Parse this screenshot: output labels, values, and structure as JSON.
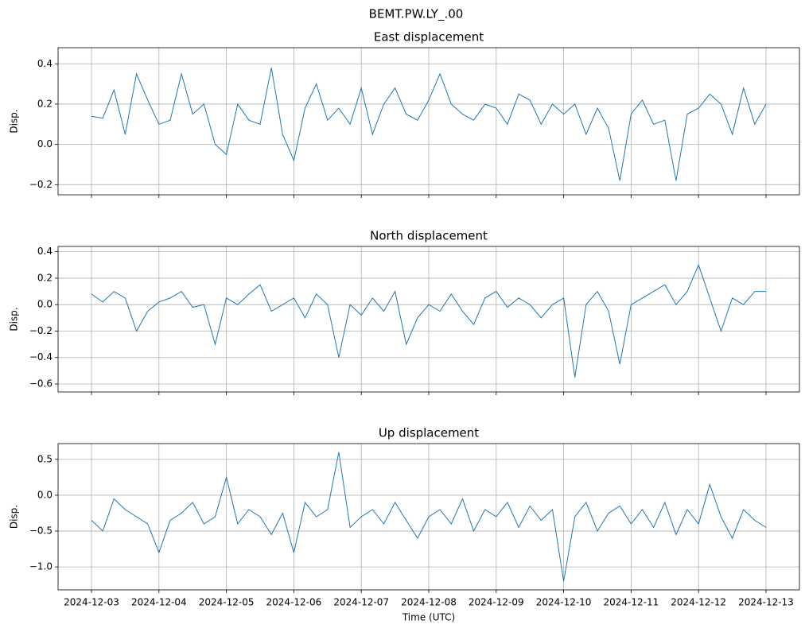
{
  "title": "BEMT.PW.LY_.00",
  "chart_data": [
    {
      "type": "line",
      "title": "East displacement",
      "ylabel": "Disp.",
      "x": [
        "2024-12-03T00:00",
        "2024-12-03T04:00",
        "2024-12-03T08:00",
        "2024-12-03T12:00",
        "2024-12-03T16:00",
        "2024-12-03T20:00",
        "2024-12-04T00:00",
        "2024-12-04T04:00",
        "2024-12-04T08:00",
        "2024-12-04T12:00",
        "2024-12-04T16:00",
        "2024-12-04T20:00",
        "2024-12-05T00:00",
        "2024-12-05T04:00",
        "2024-12-05T08:00",
        "2024-12-05T12:00",
        "2024-12-05T16:00",
        "2024-12-05T20:00",
        "2024-12-06T00:00",
        "2024-12-06T04:00",
        "2024-12-06T08:00",
        "2024-12-06T12:00",
        "2024-12-06T16:00",
        "2024-12-06T20:00",
        "2024-12-07T00:00",
        "2024-12-07T04:00",
        "2024-12-07T08:00",
        "2024-12-07T12:00",
        "2024-12-07T16:00",
        "2024-12-07T20:00",
        "2024-12-08T00:00",
        "2024-12-08T04:00",
        "2024-12-08T08:00",
        "2024-12-08T12:00",
        "2024-12-08T16:00",
        "2024-12-08T20:00",
        "2024-12-09T00:00",
        "2024-12-09T04:00",
        "2024-12-09T08:00",
        "2024-12-09T12:00",
        "2024-12-09T16:00",
        "2024-12-09T20:00",
        "2024-12-10T00:00",
        "2024-12-10T04:00",
        "2024-12-10T08:00",
        "2024-12-10T12:00",
        "2024-12-10T16:00",
        "2024-12-10T20:00",
        "2024-12-11T00:00",
        "2024-12-11T04:00",
        "2024-12-11T08:00",
        "2024-12-11T12:00",
        "2024-12-11T16:00",
        "2024-12-11T20:00",
        "2024-12-12T00:00",
        "2024-12-12T04:00",
        "2024-12-12T08:00",
        "2024-12-12T12:00",
        "2024-12-12T16:00",
        "2024-12-12T20:00",
        "2024-12-13T00:00"
      ],
      "values": [
        0.14,
        0.13,
        0.27,
        0.05,
        0.35,
        0.22,
        0.1,
        0.12,
        0.35,
        0.15,
        0.2,
        0.0,
        -0.05,
        0.2,
        0.12,
        0.1,
        0.38,
        0.05,
        -0.08,
        0.18,
        0.3,
        0.12,
        0.18,
        0.1,
        0.28,
        0.05,
        0.2,
        0.28,
        0.15,
        0.12,
        0.22,
        0.35,
        0.2,
        0.15,
        0.12,
        0.2,
        0.18,
        0.1,
        0.25,
        0.22,
        0.1,
        0.2,
        0.15,
        0.2,
        0.05,
        0.18,
        0.08,
        -0.18,
        0.15,
        0.22,
        0.1,
        0.12,
        -0.18,
        0.15,
        0.18,
        0.25,
        0.2,
        0.05,
        0.28,
        0.1,
        0.2
      ],
      "color": "#1f77b4",
      "grid": true,
      "xlim": [
        "2024-12-02T12:06",
        "2024-12-13T11:54"
      ],
      "xticks": [
        "2024-12-03",
        "2024-12-04",
        "2024-12-05",
        "2024-12-06",
        "2024-12-07",
        "2024-12-08",
        "2024-12-09",
        "2024-12-10",
        "2024-12-11",
        "2024-12-12",
        "2024-12-13"
      ],
      "ylim": [
        -0.25,
        0.48
      ],
      "yticks": [
        {
          "value": -0.2,
          "label": "−0.2"
        },
        {
          "value": 0,
          "label": "0.0"
        },
        {
          "value": 0.2,
          "label": "0.2"
        },
        {
          "value": 0.4,
          "label": "0.4"
        }
      ]
    },
    {
      "type": "line",
      "title": "North displacement",
      "ylabel": "Disp.",
      "x": [
        "2024-12-03T00:00",
        "2024-12-03T04:00",
        "2024-12-03T08:00",
        "2024-12-03T12:00",
        "2024-12-03T16:00",
        "2024-12-03T20:00",
        "2024-12-04T00:00",
        "2024-12-04T04:00",
        "2024-12-04T08:00",
        "2024-12-04T12:00",
        "2024-12-04T16:00",
        "2024-12-04T20:00",
        "2024-12-05T00:00",
        "2024-12-05T04:00",
        "2024-12-05T08:00",
        "2024-12-05T12:00",
        "2024-12-05T16:00",
        "2024-12-05T20:00",
        "2024-12-06T00:00",
        "2024-12-06T04:00",
        "2024-12-06T08:00",
        "2024-12-06T12:00",
        "2024-12-06T16:00",
        "2024-12-06T20:00",
        "2024-12-07T00:00",
        "2024-12-07T04:00",
        "2024-12-07T08:00",
        "2024-12-07T12:00",
        "2024-12-07T16:00",
        "2024-12-07T20:00",
        "2024-12-08T00:00",
        "2024-12-08T04:00",
        "2024-12-08T08:00",
        "2024-12-08T12:00",
        "2024-12-08T16:00",
        "2024-12-08T20:00",
        "2024-12-09T00:00",
        "2024-12-09T04:00",
        "2024-12-09T08:00",
        "2024-12-09T12:00",
        "2024-12-09T16:00",
        "2024-12-09T20:00",
        "2024-12-10T00:00",
        "2024-12-10T04:00",
        "2024-12-10T08:00",
        "2024-12-10T12:00",
        "2024-12-10T16:00",
        "2024-12-10T20:00",
        "2024-12-11T00:00",
        "2024-12-11T04:00",
        "2024-12-11T08:00",
        "2024-12-11T12:00",
        "2024-12-11T16:00",
        "2024-12-11T20:00",
        "2024-12-12T00:00",
        "2024-12-12T04:00",
        "2024-12-12T08:00",
        "2024-12-12T12:00",
        "2024-12-12T16:00",
        "2024-12-12T20:00",
        "2024-12-13T00:00"
      ],
      "values": [
        0.08,
        0.02,
        0.1,
        0.05,
        -0.2,
        -0.05,
        0.02,
        0.05,
        0.1,
        -0.02,
        0.0,
        -0.3,
        0.05,
        0.0,
        0.08,
        0.15,
        -0.05,
        0.0,
        0.05,
        -0.1,
        0.08,
        0.0,
        -0.4,
        0.0,
        -0.08,
        0.05,
        -0.05,
        0.1,
        -0.3,
        -0.1,
        0.0,
        -0.05,
        0.08,
        -0.05,
        -0.15,
        0.05,
        0.1,
        -0.02,
        0.05,
        0.0,
        -0.1,
        0.0,
        0.05,
        -0.55,
        0.0,
        0.1,
        -0.05,
        -0.45,
        0.0,
        0.05,
        0.1,
        0.15,
        0.0,
        0.1,
        0.3,
        0.05,
        -0.2,
        0.05,
        0.0,
        0.1,
        0.1
      ],
      "color": "#1f77b4",
      "grid": true,
      "xlim": [
        "2024-12-02T12:06",
        "2024-12-13T11:54"
      ],
      "xticks": [
        "2024-12-03",
        "2024-12-04",
        "2024-12-05",
        "2024-12-06",
        "2024-12-07",
        "2024-12-08",
        "2024-12-09",
        "2024-12-10",
        "2024-12-11",
        "2024-12-12",
        "2024-12-13"
      ],
      "ylim": [
        -0.66,
        0.44
      ],
      "yticks": [
        {
          "value": -0.6,
          "label": "−0.6"
        },
        {
          "value": -0.4,
          "label": "−0.4"
        },
        {
          "value": -0.2,
          "label": "−0.2"
        },
        {
          "value": 0,
          "label": "0.0"
        },
        {
          "value": 0.2,
          "label": "0.2"
        },
        {
          "value": 0.4,
          "label": "0.4"
        }
      ]
    },
    {
      "type": "line",
      "title": "Up displacement",
      "ylabel": "Disp.",
      "xlabel": "Time (UTC)",
      "x": [
        "2024-12-03T00:00",
        "2024-12-03T04:00",
        "2024-12-03T08:00",
        "2024-12-03T12:00",
        "2024-12-03T16:00",
        "2024-12-03T20:00",
        "2024-12-04T00:00",
        "2024-12-04T04:00",
        "2024-12-04T08:00",
        "2024-12-04T12:00",
        "2024-12-04T16:00",
        "2024-12-04T20:00",
        "2024-12-05T00:00",
        "2024-12-05T04:00",
        "2024-12-05T08:00",
        "2024-12-05T12:00",
        "2024-12-05T16:00",
        "2024-12-05T20:00",
        "2024-12-06T00:00",
        "2024-12-06T04:00",
        "2024-12-06T08:00",
        "2024-12-06T12:00",
        "2024-12-06T16:00",
        "2024-12-06T20:00",
        "2024-12-07T00:00",
        "2024-12-07T04:00",
        "2024-12-07T08:00",
        "2024-12-07T12:00",
        "2024-12-07T16:00",
        "2024-12-07T20:00",
        "2024-12-08T00:00",
        "2024-12-08T04:00",
        "2024-12-08T08:00",
        "2024-12-08T12:00",
        "2024-12-08T16:00",
        "2024-12-08T20:00",
        "2024-12-09T00:00",
        "2024-12-09T04:00",
        "2024-12-09T08:00",
        "2024-12-09T12:00",
        "2024-12-09T16:00",
        "2024-12-09T20:00",
        "2024-12-10T00:00",
        "2024-12-10T04:00",
        "2024-12-10T08:00",
        "2024-12-10T12:00",
        "2024-12-10T16:00",
        "2024-12-10T20:00",
        "2024-12-11T00:00",
        "2024-12-11T04:00",
        "2024-12-11T08:00",
        "2024-12-11T12:00",
        "2024-12-11T16:00",
        "2024-12-11T20:00",
        "2024-12-12T00:00",
        "2024-12-12T04:00",
        "2024-12-12T08:00",
        "2024-12-12T12:00",
        "2024-12-12T16:00",
        "2024-12-12T20:00",
        "2024-12-13T00:00"
      ],
      "values": [
        -0.35,
        -0.5,
        -0.05,
        -0.2,
        -0.3,
        -0.4,
        -0.8,
        -0.35,
        -0.25,
        -0.1,
        -0.4,
        -0.3,
        0.25,
        -0.4,
        -0.2,
        -0.3,
        -0.55,
        -0.25,
        -0.8,
        -0.1,
        -0.3,
        -0.2,
        0.6,
        -0.45,
        -0.3,
        -0.2,
        -0.4,
        -0.1,
        -0.35,
        -0.6,
        -0.3,
        -0.2,
        -0.4,
        -0.05,
        -0.5,
        -0.2,
        -0.3,
        -0.1,
        -0.45,
        -0.15,
        -0.35,
        -0.2,
        -1.2,
        -0.3,
        -0.1,
        -0.5,
        -0.25,
        -0.15,
        -0.4,
        -0.2,
        -0.45,
        -0.1,
        -0.55,
        -0.2,
        -0.4,
        0.15,
        -0.3,
        -0.6,
        -0.2,
        -0.35,
        -0.45
      ],
      "color": "#1f77b4",
      "grid": true,
      "xlim": [
        "2024-12-02T12:06",
        "2024-12-13T11:54"
      ],
      "xticks": [
        "2024-12-03",
        "2024-12-04",
        "2024-12-05",
        "2024-12-06",
        "2024-12-07",
        "2024-12-08",
        "2024-12-09",
        "2024-12-10",
        "2024-12-11",
        "2024-12-12",
        "2024-12-13"
      ],
      "ylim": [
        -1.32,
        0.72
      ],
      "yticks": [
        {
          "value": -1.0,
          "label": "−1.0"
        },
        {
          "value": -0.5,
          "label": "−0.5"
        },
        {
          "value": 0,
          "label": "0.0"
        },
        {
          "value": 0.5,
          "label": "0.5"
        }
      ]
    }
  ]
}
